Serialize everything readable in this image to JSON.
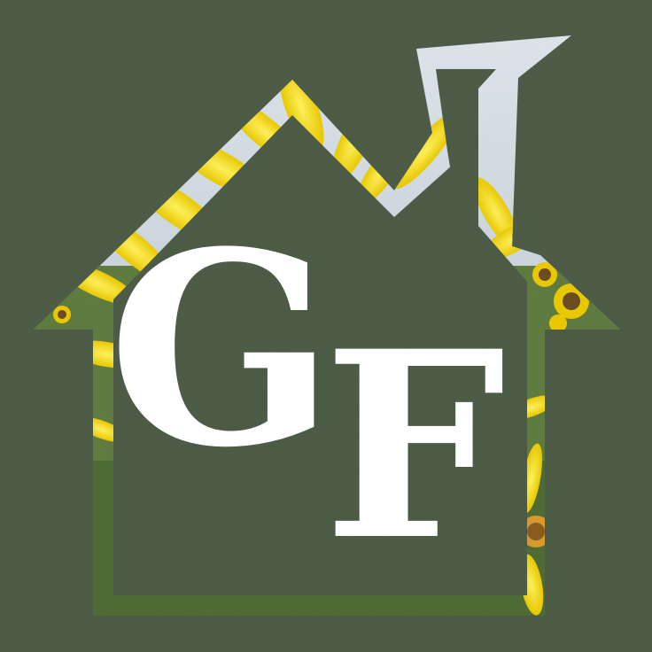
{
  "logo": {
    "letter_1": "G",
    "letter_2": "F"
  },
  "colors": {
    "background": "#4b5a45",
    "house_fill": "#4b5a45",
    "letters": "#ffffff",
    "sky": "#c9d3dc",
    "sunflower_yellow": "#f2dc12",
    "foliage_green": "#5e7a3e"
  },
  "icons": [
    "house-logo-icon",
    "sunflower-field-image",
    "chimney-icon"
  ]
}
